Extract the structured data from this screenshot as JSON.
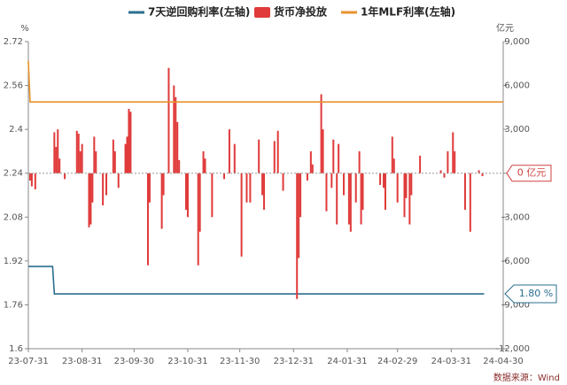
{
  "chart_data": {
    "type": "bar-line",
    "y_label": "%",
    "y2_label": "亿元",
    "source": "数据来源：Wind",
    "annotations": [
      "0 亿元",
      "1.80 %"
    ],
    "xlim": [
      "23-07-31",
      "24-04-30"
    ],
    "xticks": [
      "23-07-31",
      "23-08-31",
      "23-09-30",
      "23-10-31",
      "23-11-30",
      "23-12-31",
      "24-01-31",
      "24-02-29",
      "24-03-31",
      "24-04-30"
    ],
    "ylim": [
      1.6,
      2.72
    ],
    "yticks": [
      1.6,
      1.76,
      1.92,
      2.08,
      2.24,
      2.4,
      2.56,
      2.72
    ],
    "y2lim": [
      -12000,
      9000
    ],
    "y2ticks": [
      {
        "value": -12000,
        "label": "-12,000"
      },
      {
        "value": -9000,
        "label": "-9,000"
      },
      {
        "value": -6000,
        "label": "-6,000"
      },
      {
        "value": -3000,
        "label": "-3,000"
      },
      0,
      {
        "value": 3000,
        "label": "3,000"
      },
      {
        "value": 6000,
        "label": "6,000"
      },
      {
        "value": 9000,
        "label": "9,000"
      }
    ],
    "series": [
      {
        "name": "7天逆回购利率(左轴)",
        "kind": "line",
        "color": "#2b6f8f",
        "x": [
          "23-07-31",
          "23-08-14",
          "23-08-15",
          "24-04-19"
        ],
        "values": [
          1.9,
          1.9,
          1.8,
          1.8
        ]
      },
      {
        "name": "货币净投放",
        "kind": "bar",
        "axis": "y2",
        "color": "#e03a3a",
        "x": [
          "23-08-01",
          "23-08-02",
          "23-08-04",
          "23-08-15",
          "23-08-16",
          "23-08-17",
          "23-08-18",
          "23-08-21",
          "23-08-28",
          "23-08-29",
          "23-08-30",
          "23-08-31",
          "23-09-04",
          "23-09-05",
          "23-09-06",
          "23-09-07",
          "23-09-08",
          "23-09-12",
          "23-09-14",
          "23-09-18",
          "23-09-19",
          "23-09-21",
          "23-09-25",
          "23-09-26",
          "23-09-27",
          "23-09-28",
          "23-10-08",
          "23-10-09",
          "23-10-16",
          "23-10-17",
          "23-10-20",
          "23-10-23",
          "23-10-24",
          "23-10-25",
          "23-10-26",
          "23-10-30",
          "23-10-31",
          "23-11-06",
          "23-11-07",
          "23-11-09",
          "23-11-10",
          "23-11-14",
          "23-11-21",
          "23-11-24",
          "23-11-27",
          "23-12-01",
          "23-12-04",
          "23-12-06",
          "23-12-11",
          "23-12-13",
          "23-12-14",
          "23-12-20",
          "23-12-22",
          "23-12-25",
          "24-01-02",
          "24-01-03",
          "24-01-04",
          "24-01-08",
          "24-01-10",
          "24-01-11",
          "24-01-16",
          "24-01-17",
          "24-01-19",
          "24-01-22",
          "24-01-23",
          "24-01-25",
          "24-01-26",
          "24-01-29",
          "24-02-01",
          "24-02-02",
          "24-02-05",
          "24-02-07",
          "24-02-08",
          "24-02-09",
          "24-02-19",
          "24-02-21",
          "24-02-22",
          "24-02-26",
          "24-02-27",
          "24-02-29",
          "24-03-04",
          "24-03-05",
          "24-03-07",
          "24-03-08",
          "24-03-13",
          "24-03-25",
          "24-03-27",
          "24-03-29",
          "24-04-01",
          "24-04-02",
          "24-04-08",
          "24-04-11",
          "24-04-16",
          "24-04-18"
        ],
        "values": [
          -500,
          -900,
          -1100,
          2800,
          1800,
          3000,
          1000,
          -400,
          2900,
          2700,
          1500,
          2000,
          -3700,
          -3500,
          -2000,
          2500,
          1500,
          -2200,
          -1500,
          2300,
          1500,
          -1000,
          2000,
          2500,
          4400,
          4200,
          -6300,
          -2000,
          -3800,
          -1500,
          7200,
          6000,
          5200,
          3500,
          900,
          -2500,
          -3000,
          -6300,
          -4000,
          1500,
          1000,
          -3000,
          -400,
          3000,
          2000,
          -5700,
          -2000,
          -2000,
          2300,
          -1500,
          -2500,
          2200,
          2900,
          -1200,
          -8600,
          -5800,
          -3000,
          -500,
          1500,
          600,
          5400,
          3000,
          -2600,
          -1000,
          2300,
          -3500,
          2000,
          -1500,
          -3500,
          -4000,
          -2000,
          1500,
          -3500,
          -2500,
          -800,
          -1000,
          -2500,
          2500,
          1000,
          -2000,
          -3000,
          -1700,
          -3500,
          -1500,
          1200,
          200,
          -300,
          1500,
          2800,
          1500,
          -2500,
          -4000,
          200,
          -200
        ]
      },
      {
        "name": "1年MLF利率(左轴)",
        "kind": "line",
        "color": "#e8922e",
        "x": [
          "23-07-31",
          "23-08-01",
          "24-04-30"
        ],
        "values": [
          2.65,
          2.5,
          2.5
        ]
      }
    ]
  }
}
